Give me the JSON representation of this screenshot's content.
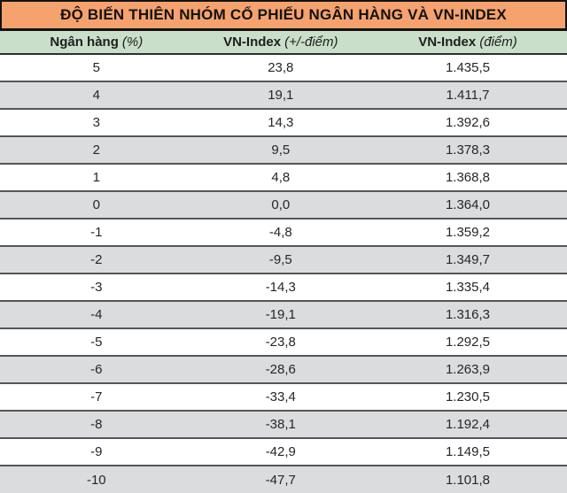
{
  "title": "ĐỘ BIẾN THIÊN NHÓM CỔ PHIẾU NGÂN HÀNG VÀ VN-INDEX",
  "colors": {
    "title_bg": "#F5A26E",
    "header_bg": "#C9DFCA",
    "row_alt_bg": "#DBDCDD",
    "separator": "#55565A"
  },
  "table": {
    "columns": [
      {
        "label": "Ngân hàng",
        "unit": "(%)"
      },
      {
        "label": "VN-Index",
        "unit": "(+/-điểm)"
      },
      {
        "label": "VN-Index",
        "unit": "(điểm)"
      }
    ],
    "rows": [
      [
        "5",
        "23,8",
        "1.435,5"
      ],
      [
        "4",
        "19,1",
        "1.411,7"
      ],
      [
        "3",
        "14,3",
        "1.392,6"
      ],
      [
        "2",
        "9,5",
        "1.378,3"
      ],
      [
        "1",
        "4,8",
        "1.368,8"
      ],
      [
        "0",
        "0,0",
        "1.364,0"
      ],
      [
        "-1",
        "-4,8",
        "1.359,2"
      ],
      [
        "-2",
        "-9,5",
        "1.349,7"
      ],
      [
        "-3",
        "-14,3",
        "1.335,4"
      ],
      [
        "-4",
        "-19,1",
        "1.316,3"
      ],
      [
        "-5",
        "-23,8",
        "1.292,5"
      ],
      [
        "-6",
        "-28,6",
        "1.263,9"
      ],
      [
        "-7",
        "-33,4",
        "1.230,5"
      ],
      [
        "-8",
        "-38,1",
        "1.192,4"
      ],
      [
        "-9",
        "-42,9",
        "1.149,5"
      ],
      [
        "-10",
        "-47,7",
        "1.101,8"
      ]
    ]
  },
  "chart_data": {
    "type": "table",
    "title": "ĐỘ BIẾN THIÊN NHÓM CỔ PHIẾU NGÂN HÀNG VÀ VN-INDEX",
    "columns": [
      "Ngân hàng (%)",
      "VN-Index (+/-điểm)",
      "VN-Index (điểm)"
    ],
    "rows": [
      [
        5,
        23.8,
        1435.5
      ],
      [
        4,
        19.1,
        1411.7
      ],
      [
        3,
        14.3,
        1392.6
      ],
      [
        2,
        9.5,
        1378.3
      ],
      [
        1,
        4.8,
        1368.8
      ],
      [
        0,
        0.0,
        1364.0
      ],
      [
        -1,
        -4.8,
        1359.2
      ],
      [
        -2,
        -9.5,
        1349.7
      ],
      [
        -3,
        -14.3,
        1335.4
      ],
      [
        -4,
        -19.1,
        1316.3
      ],
      [
        -5,
        -23.8,
        1292.5
      ],
      [
        -6,
        -28.6,
        1263.9
      ],
      [
        -7,
        -33.4,
        1230.5
      ],
      [
        -8,
        -38.1,
        1192.4
      ],
      [
        -9,
        -42.9,
        1149.5
      ],
      [
        -10,
        -47.7,
        1101.8
      ]
    ]
  }
}
